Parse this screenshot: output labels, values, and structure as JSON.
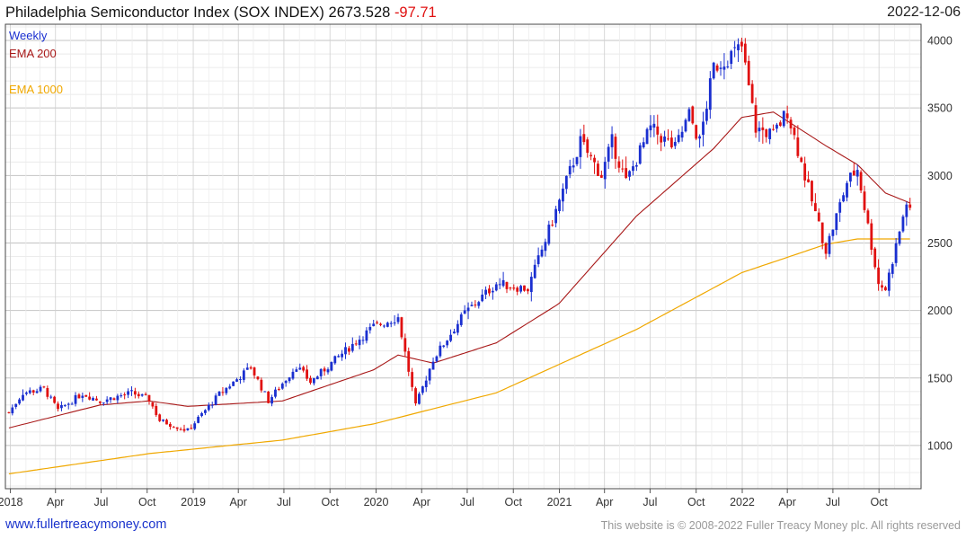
{
  "header": {
    "name": "Philadelphia Semiconductor Index (SOX INDEX)",
    "last": "2673.528",
    "change": "-97.71",
    "date": "2022-12-06"
  },
  "legend": {
    "period": "Weekly",
    "ema200": "EMA 200",
    "ema1000": "EMA 1000"
  },
  "footer": {
    "site": "www.fullertreacymoney.com",
    "copyright": "This website is © 2008-2022 Fuller Treacy Money plc. All rights reserved"
  },
  "colors": {
    "up": "#1a2fd0",
    "down": "#e01010",
    "ema200": "#a81818",
    "ema1000": "#f0a800",
    "grid": "#d8d8d8"
  },
  "chart_data": {
    "type": "candlestick",
    "title": "Philadelphia Semiconductor Index (SOX INDEX)",
    "frequency": "weekly",
    "x_ticks": [
      "2018",
      "Apr",
      "Jul",
      "Oct",
      "2019",
      "Apr",
      "Jul",
      "Oct",
      "2020",
      "Apr",
      "Jul",
      "Oct",
      "2021",
      "Apr",
      "Jul",
      "Oct",
      "2022",
      "Apr",
      "Jul",
      "Oct"
    ],
    "y_ticks": [
      1000,
      1500,
      2000,
      2500,
      3000,
      3500,
      4000
    ],
    "ylim": [
      680,
      4120
    ],
    "x_range": [
      "2017-12-22",
      "2022-12-24"
    ],
    "price_anchors": [
      [
        "2017-12-29",
        1245
      ],
      [
        "2018-01-26",
        1390
      ],
      [
        "2018-03-09",
        1420
      ],
      [
        "2018-04-06",
        1260
      ],
      [
        "2018-05-25",
        1385
      ],
      [
        "2018-06-29",
        1330
      ],
      [
        "2018-08-31",
        1390
      ],
      [
        "2018-10-05",
        1340
      ],
      [
        "2018-10-26",
        1185
      ],
      [
        "2018-12-21",
        1110
      ],
      [
        "2019-02-22",
        1380
      ],
      [
        "2019-04-26",
        1580
      ],
      [
        "2019-05-31",
        1330
      ],
      [
        "2019-07-26",
        1590
      ],
      [
        "2019-08-23",
        1470
      ],
      [
        "2019-10-25",
        1680
      ],
      [
        "2019-12-27",
        1880
      ],
      [
        "2020-02-14",
        1950
      ],
      [
        "2020-03-20",
        1290
      ],
      [
        "2020-04-24",
        1640
      ],
      [
        "2020-06-26",
        1980
      ],
      [
        "2020-08-28",
        2200
      ],
      [
        "2020-10-30",
        2160
      ],
      [
        "2020-12-31",
        2800
      ],
      [
        "2021-02-12",
        3250
      ],
      [
        "2021-03-26",
        3000
      ],
      [
        "2021-04-16",
        3250
      ],
      [
        "2021-05-14",
        2950
      ],
      [
        "2021-07-02",
        3350
      ],
      [
        "2021-08-20",
        3200
      ],
      [
        "2021-09-17",
        3450
      ],
      [
        "2021-10-08",
        3250
      ],
      [
        "2021-11-05",
        3800
      ],
      [
        "2021-12-31",
        3950
      ],
      [
        "2022-01-28",
        3350
      ],
      [
        "2022-03-04",
        3300
      ],
      [
        "2022-04-01",
        3480
      ],
      [
        "2022-05-13",
        2900
      ],
      [
        "2022-06-17",
        2450
      ],
      [
        "2022-07-29",
        2950
      ],
      [
        "2022-08-19",
        3050
      ],
      [
        "2022-09-30",
        2200
      ],
      [
        "2022-10-14",
        2160
      ],
      [
        "2022-11-25",
        2800
      ],
      [
        "2022-12-06",
        2673
      ]
    ],
    "ema200_anchors": [
      [
        "2017-12-29",
        1130
      ],
      [
        "2018-06-29",
        1300
      ],
      [
        "2018-10-05",
        1330
      ],
      [
        "2018-12-21",
        1290
      ],
      [
        "2019-06-28",
        1330
      ],
      [
        "2019-12-27",
        1560
      ],
      [
        "2020-02-14",
        1670
      ],
      [
        "2020-04-24",
        1610
      ],
      [
        "2020-08-28",
        1760
      ],
      [
        "2020-12-31",
        2050
      ],
      [
        "2021-06-04",
        2700
      ],
      [
        "2021-11-05",
        3200
      ],
      [
        "2021-12-31",
        3430
      ],
      [
        "2022-03-04",
        3470
      ],
      [
        "2022-06-17",
        3220
      ],
      [
        "2022-08-19",
        3080
      ],
      [
        "2022-10-14",
        2870
      ],
      [
        "2022-12-06",
        2790
      ]
    ],
    "ema1000_anchors": [
      [
        "2017-12-29",
        790
      ],
      [
        "2018-10-05",
        940
      ],
      [
        "2019-06-28",
        1040
      ],
      [
        "2019-12-27",
        1160
      ],
      [
        "2020-08-28",
        1390
      ],
      [
        "2021-06-04",
        1860
      ],
      [
        "2021-12-31",
        2280
      ],
      [
        "2022-06-17",
        2490
      ],
      [
        "2022-08-19",
        2530
      ],
      [
        "2022-12-06",
        2530
      ]
    ]
  }
}
